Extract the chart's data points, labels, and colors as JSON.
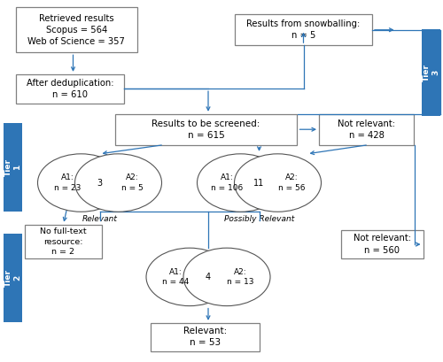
{
  "bg_color": "#ffffff",
  "box_edge_color": "#808080",
  "blue_color": "#2E75B6",
  "tier_bg": "#2E75B6",
  "tier_text_color": "#ffffff",
  "retrieved_text": "Retrieved results\nScopus = 564\nWeb of Science = 357",
  "snowball_text": "Results from snowballing:\nn = 5",
  "dedup_text": "After deduplication:\nn = 610",
  "screened_text": "Results to be screened:\nn = 615",
  "not_rel1_text": "Not relevant:\nn = 428",
  "no_fulltext_text": "No full-text\nresource:\nn = 2",
  "not_rel2_text": "Not relevant:\nn = 560",
  "relevant_text": "Relevant:\nn = 53",
  "tier1_text": "Tier\n1",
  "tier2_text": "Tier\n2",
  "tier3_text": "Tier\n3",
  "venn1_l": "A1:\nn = 23",
  "venn1_r": "A2:\nn = 5",
  "venn1_m": "3",
  "venn2_l": "A1:\nn = 106",
  "venn2_r": "A2:\nn = 56",
  "venn2_m": "11",
  "venn3_l": "A1:\nn = 44",
  "venn3_r": "A2:\nn = 13",
  "venn3_m": "4",
  "label_relevant": "Relevant",
  "label_possibly": "Possibly Relevant"
}
